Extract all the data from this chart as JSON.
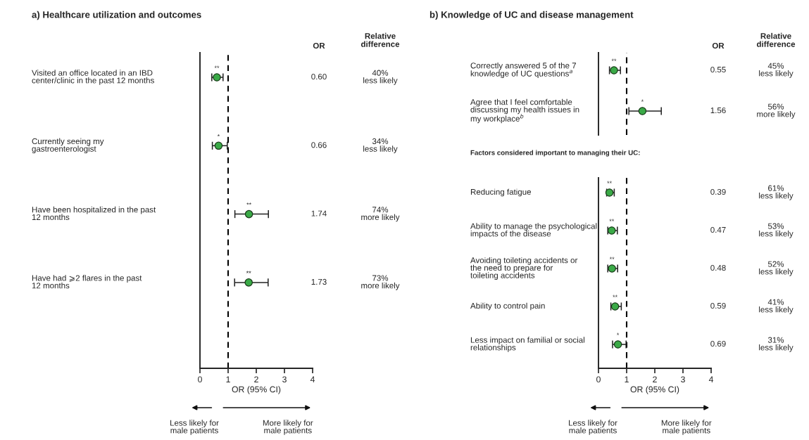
{
  "chart_data": [
    {
      "type": "scatter",
      "orientation": "horizontal",
      "title": "a) Healthcare utilization and outcomes",
      "xlabel": "OR (95% CI)",
      "categories": [
        "Visited an office located in an IBD\ncenter/clinic in the past 12 months",
        "Currently seeing my\ngastroenterologist",
        "Have been hospitalized in the past\n12 months",
        "Have had ⩾2 flares in the past\n12 months"
      ],
      "values": [
        0.6,
        0.66,
        1.74,
        1.73
      ],
      "errors": [
        [
          0.42,
          0.82
        ],
        [
          0.44,
          0.97
        ],
        [
          1.24,
          2.43
        ],
        [
          1.23,
          2.42
        ]
      ],
      "value_labels": [
        "0.60",
        "0.66",
        "1.74",
        "1.73"
      ],
      "color": "#3aaa47",
      "marker": "circle",
      "xlim": [
        0,
        4
      ],
      "xticks": [
        0,
        1,
        2,
        3,
        4
      ],
      "grid": false,
      "tick_labels": "x",
      "ref_lines": [
        {
          "axis": "x",
          "value": 1,
          "line_style": "dashed",
          "color": "#000000"
        }
      ],
      "annotations": [
        "OR",
        "Relative\ndifference",
        "40%\nless likely",
        "34%\nless likely",
        "74%\nmore likely",
        "73%\nmore likely",
        "Less likely for\nmale patients",
        "More likely for\nmale patients",
        {
          "text": "**",
          "x": 0.6,
          "y": "Visited an office located in an IBD\ncenter/clinic in the past 12 months"
        },
        {
          "text": "*",
          "x": 0.66,
          "y": "Currently seeing my\ngastroenterologist"
        },
        {
          "text": "**",
          "x": 1.74,
          "y": "Have been hospitalized in the past\n12 months"
        },
        {
          "text": "**",
          "x": 1.73,
          "y": "Have had ⩾2 flares in the past\n12 months"
        }
      ]
    },
    {
      "type": "scatter",
      "orientation": "horizontal",
      "title": "b) Knowledge of UC and disease management",
      "categories": [
        "Correctly answered 5 of the 7\nknowledge of UC questions$^{a}$",
        "Agree that I feel comfortable\ndiscussing my health issues in\nmy workplace$^{b}$"
      ],
      "values": [
        0.55,
        1.56
      ],
      "errors": [
        [
          0.39,
          0.78
        ],
        [
          1.08,
          2.23
        ]
      ],
      "value_labels": [
        "0.55",
        "1.56"
      ],
      "color": "#3aaa47",
      "marker": "circle",
      "xlim": [
        0,
        4
      ],
      "grid": false,
      "tick_labels": false,
      "ref_lines": [
        {
          "axis": "x",
          "value": 1,
          "line_style": "dashed",
          "color": "#000000"
        }
      ],
      "annotations": [
        "OR",
        "Relative\ndifference",
        "45%\nless likely",
        "56%\nmore likely",
        {
          "text": "**",
          "x": 0.55,
          "y": "Correctly answered 5 of the 7\nknowledge of UC questions$^{a}$"
        },
        {
          "text": "*",
          "x": 1.56,
          "y": "Agree that I feel comfortable\ndiscussing my health issues in\nmy workplace$^{b}$"
        }
      ]
    },
    {
      "type": "scatter",
      "orientation": "horizontal",
      "title": "Factors considered important to managing their UC:",
      "xlabel": "OR (95% CI)",
      "categories": [
        "Reducing fatigue",
        "Ability to manage the psychological\nimpacts of the disease",
        "Avoiding toileting accidents or\nthe need to prepare for\ntoileting accidents",
        "Ability to control pain",
        "Less impact on familial or social\nrelationships"
      ],
      "values": [
        0.39,
        0.47,
        0.48,
        0.59,
        0.69
      ],
      "errors": [
        [
          0.29,
          0.56
        ],
        [
          0.33,
          0.67
        ],
        [
          0.33,
          0.68
        ],
        [
          0.44,
          0.81
        ],
        [
          0.5,
          0.98
        ]
      ],
      "value_labels": [
        "0.39",
        "0.47",
        "0.48",
        "0.59",
        "0.69"
      ],
      "color": "#3aaa47",
      "marker": "circle",
      "xlim": [
        0,
        4
      ],
      "xticks": [
        0,
        1,
        2,
        3,
        4
      ],
      "grid": false,
      "tick_labels": "x",
      "ref_lines": [
        {
          "axis": "x",
          "value": 1,
          "line_style": "dashed",
          "color": "#000000"
        }
      ],
      "annotations": [
        "61%\nless likely",
        "53%\nless likely",
        "52%\nless likely",
        "41%\nless likely",
        "31%\nless likely",
        "Less likely for\nmale patients",
        "More likely for\nmale patients",
        {
          "text": "**",
          "x": 0.39,
          "y": "Reducing fatigue"
        },
        {
          "text": "**",
          "x": 0.47,
          "y": "Ability to manage the psychological\nimpacts of the disease"
        },
        {
          "text": "**",
          "x": 0.48,
          "y": "Avoiding toileting accidents or\nthe need to prepare for\ntoileting accidents"
        },
        {
          "text": "**",
          "x": 0.59,
          "y": "Ability to control pain"
        },
        {
          "text": "*",
          "x": 0.69,
          "y": "Less impact on familial or social\nrelationships"
        }
      ]
    }
  ]
}
